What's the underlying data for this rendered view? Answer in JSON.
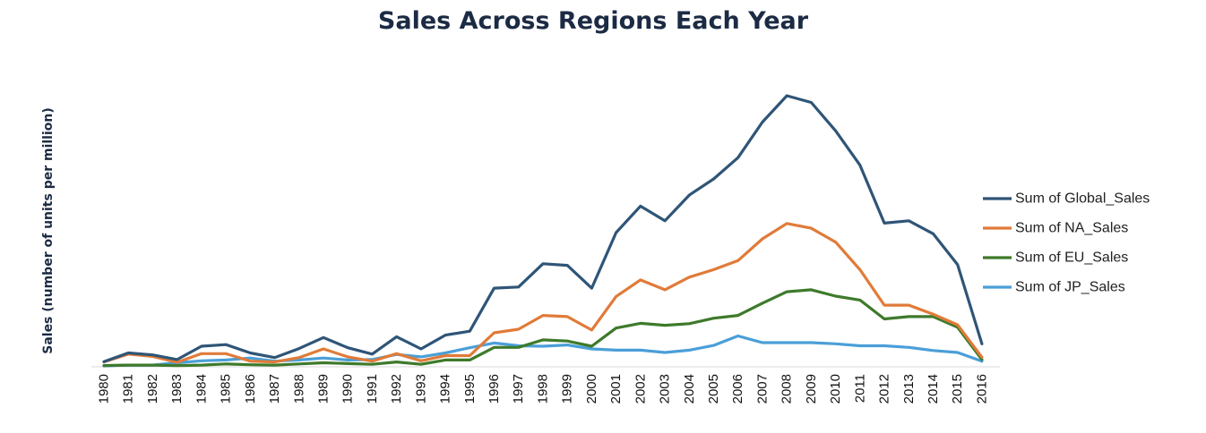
{
  "chart_data": {
    "type": "line",
    "title": "Sales Across Regions Each Year",
    "xlabel": "",
    "ylabel": "Sales (number of units per million)",
    "ylim": [
      0,
      700
    ],
    "grid": false,
    "legend_position": "right",
    "x": [
      "1980",
      "1981",
      "1982",
      "1983",
      "1984",
      "1985",
      "1986",
      "1987",
      "1988",
      "1989",
      "1990",
      "1991",
      "1992",
      "1993",
      "1994",
      "1995",
      "1996",
      "1997",
      "1998",
      "1999",
      "2000",
      "2001",
      "2002",
      "2003",
      "2004",
      "2005",
      "2006",
      "2007",
      "2008",
      "2009",
      "2010",
      "2011",
      "2012",
      "2013",
      "2014",
      "2015",
      "2016"
    ],
    "series": [
      {
        "name": "Sum of Global_Sales",
        "color": "#2f5577",
        "values": [
          11,
          33,
          28,
          16,
          50,
          54,
          33,
          21,
          44,
          72,
          46,
          30,
          74,
          43,
          78,
          88,
          197,
          200,
          259,
          255,
          197,
          338,
          405,
          368,
          433,
          474,
          528,
          618,
          685,
          668,
          596,
          509,
          362,
          368,
          335,
          257,
          56
        ]
      },
      {
        "name": "Sum of NA_Sales",
        "color": "#e07b39",
        "values": [
          10,
          30,
          24,
          9,
          31,
          31,
          12,
          10,
          21,
          43,
          23,
          12,
          31,
          13,
          26,
          26,
          84,
          93,
          128,
          125,
          91,
          176,
          218,
          193,
          225,
          244,
          267,
          322,
          361,
          349,
          314,
          244,
          154,
          154,
          131,
          104,
          22
        ]
      },
      {
        "name": "Sum of EU_Sales",
        "color": "#3e7a2b",
        "values": [
          1,
          2,
          2,
          1,
          2,
          5,
          3,
          2,
          5,
          8,
          6,
          4,
          10,
          4,
          15,
          15,
          47,
          47,
          66,
          63,
          50,
          96,
          108,
          103,
          107,
          121,
          128,
          159,
          188,
          193,
          177,
          167,
          119,
          125,
          125,
          98,
          16
        ]
      },
      {
        "name": "Sum of JP_Sales",
        "color": "#4a9fd8",
        "values": [
          0,
          2,
          2,
          8,
          13,
          15,
          20,
          12,
          15,
          20,
          15,
          16,
          29,
          23,
          33,
          46,
          58,
          51,
          50,
          53,
          43,
          40,
          40,
          34,
          40,
          52,
          76,
          59,
          59,
          59,
          56,
          51,
          51,
          47,
          39,
          34,
          12
        ]
      }
    ]
  }
}
